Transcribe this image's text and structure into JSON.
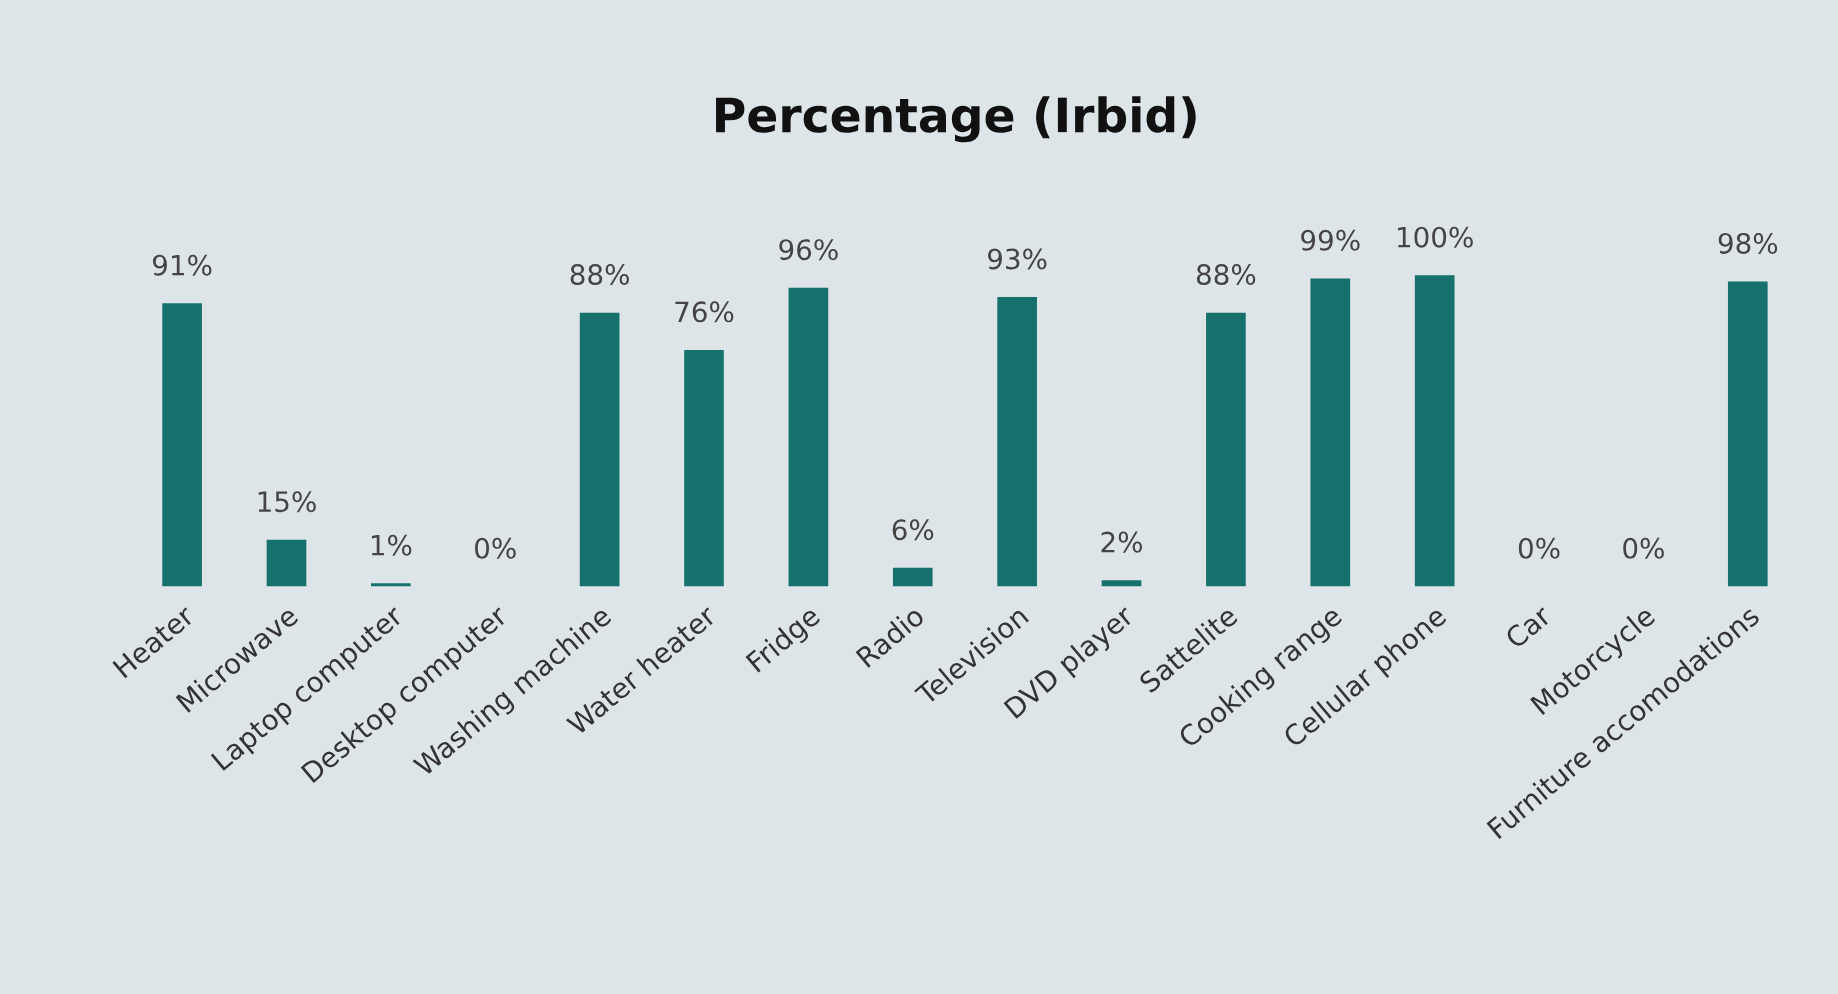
{
  "chart_data": {
    "type": "bar",
    "title": "Percentage (Irbid)",
    "categories": [
      "Heater",
      "Microwave",
      "Laptop computer",
      "Desktop computer",
      "Washing machine",
      "Water heater",
      "Fridge",
      "Radio",
      "Television",
      "DVD player",
      "Sattelite",
      "Cooking range",
      "Cellular phone",
      "Car",
      "Motorcycle",
      "Furniture accomodations"
    ],
    "values": [
      91,
      15,
      1,
      0,
      88,
      76,
      96,
      6,
      93,
      2,
      88,
      99,
      100,
      0,
      0,
      98
    ],
    "value_labels": [
      "91%",
      "15%",
      "1%",
      "0%",
      "88%",
      "76%",
      "96%",
      "6%",
      "93%",
      "2%",
      "88%",
      "99%",
      "100%",
      "0%",
      "0%",
      "98%"
    ],
    "color": "#16716d",
    "grid": false,
    "legend": false,
    "tick_labels": "x"
  }
}
